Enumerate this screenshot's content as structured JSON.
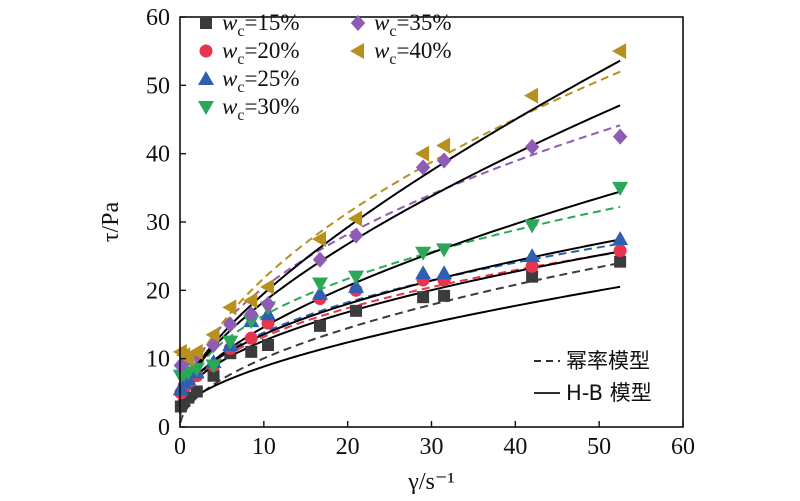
{
  "chart_data": {
    "type": "scatter",
    "title": "",
    "xlabel": "γ/s⁻¹",
    "ylabel": "τ/Pa",
    "xlim": [
      0,
      60
    ],
    "ylim": [
      0,
      60
    ],
    "xticks": [
      0,
      10,
      20,
      30,
      40,
      50,
      60
    ],
    "yticks": [
      0,
      10,
      20,
      30,
      40,
      50,
      60
    ],
    "grid": false,
    "legend": {
      "placement": "top-left",
      "series_layout": "two columns",
      "model_placement": "bottom-right",
      "model_labels": [
        {
          "style": "dashed",
          "label": "幂率模型"
        },
        {
          "style": "solid",
          "label": "H-B 模型"
        }
      ]
    },
    "series": [
      {
        "name": "wc=15%",
        "label_var": "w",
        "label_sub": "c",
        "label_val": "=15%",
        "marker": "square",
        "color": "#3b3b3b",
        "x": [
          0.1,
          0.5,
          1,
          2,
          4,
          6,
          8.5,
          10.5,
          16.7,
          21,
          29,
          31.5,
          42,
          52.5
        ],
        "y": [
          3,
          3.8,
          4.3,
          5.2,
          7.5,
          10.8,
          11,
          12,
          14.8,
          17,
          19,
          19.2,
          22,
          24.2
        ],
        "hb": {
          "tau0": 2,
          "k": 1.72,
          "n": 0.6
        },
        "pl": {
          "k": 3.0,
          "n": 0.525
        }
      },
      {
        "name": "wc=20%",
        "label_var": "w",
        "label_sub": "c",
        "label_val": "=20%",
        "marker": "circle",
        "color": "#e8344e",
        "x": [
          0.1,
          0.5,
          1,
          2,
          4,
          6,
          8.5,
          10.5,
          16.7,
          21,
          29,
          31.5,
          42,
          52.5
        ],
        "y": [
          5,
          6,
          6.5,
          7.5,
          9,
          11.5,
          13,
          15.2,
          18.8,
          20,
          21.5,
          21.5,
          23.5,
          25.8
        ],
        "hb": {
          "tau0": 2.5,
          "k": 3.2,
          "n": 0.5
        },
        "pl": {
          "k": 5.25,
          "n": 0.4
        }
      },
      {
        "name": "wc=25%",
        "label_var": "w",
        "label_sub": "c",
        "label_val": "=25%",
        "marker": "triangle-up",
        "color": "#2f5fb0",
        "x": [
          0.1,
          0.5,
          1,
          2,
          4,
          6,
          8.5,
          10.5,
          16.7,
          21,
          29,
          31.5,
          42,
          52.5
        ],
        "y": [
          5.5,
          6.5,
          7,
          8,
          9.5,
          12,
          15.5,
          16.5,
          19.5,
          20.5,
          22.5,
          22.5,
          25,
          27.5
        ],
        "hb": {
          "tau0": 2.8,
          "k": 3.4,
          "n": 0.5
        },
        "pl": {
          "k": 5.5,
          "n": 0.4
        }
      },
      {
        "name": "wc=30%",
        "label_var": "w",
        "label_sub": "c",
        "label_val": "=30%",
        "marker": "triangle-down",
        "color": "#2aa858",
        "x": [
          0.1,
          0.5,
          1,
          2,
          4,
          6,
          8.5,
          10.5,
          16.7,
          21,
          29,
          31.5,
          42,
          52.5
        ],
        "y": [
          7.5,
          7.8,
          8,
          8.5,
          9,
          12.5,
          15.5,
          17.5,
          21,
          22,
          25.5,
          26,
          29.5,
          35
        ],
        "hb": {
          "tau0": 3,
          "k": 2.92,
          "n": 0.6
        },
        "pl": {
          "k": 6.35,
          "n": 0.41
        }
      },
      {
        "name": "wc=35%",
        "label_var": "w",
        "label_sub": "c",
        "label_val": "=35%",
        "marker": "diamond",
        "color": "#8e5bb5",
        "x": [
          0.1,
          0.5,
          1,
          2,
          4,
          6,
          8.5,
          10.5,
          16.7,
          21,
          29,
          31.5,
          42,
          52.5
        ],
        "y": [
          9,
          9.5,
          10,
          10.5,
          12,
          15,
          16.5,
          18,
          24.5,
          28,
          38,
          39,
          41,
          42.5
        ],
        "hb": {
          "tau0": 3.5,
          "k": 3.32,
          "n": 0.65
        },
        "pl": {
          "k": 7.0,
          "n": 0.465
        }
      },
      {
        "name": "wc=40%",
        "label_var": "w",
        "label_sub": "c",
        "label_val": "=40%",
        "marker": "triangle-left",
        "color": "#b8901e",
        "x": [
          0.1,
          0.5,
          1,
          2,
          4,
          6,
          8.5,
          10.5,
          16.7,
          21,
          29,
          31.5,
          42,
          52.5
        ],
        "y": [
          11,
          10.5,
          10,
          11,
          13.5,
          17.5,
          18.5,
          20.5,
          27.5,
          30.5,
          40,
          41.2,
          48.5,
          55
        ],
        "hb": {
          "tau0": 4,
          "k": 3.1,
          "n": 0.7
        },
        "pl": {
          "k": 6.5,
          "n": 0.525
        }
      }
    ]
  }
}
